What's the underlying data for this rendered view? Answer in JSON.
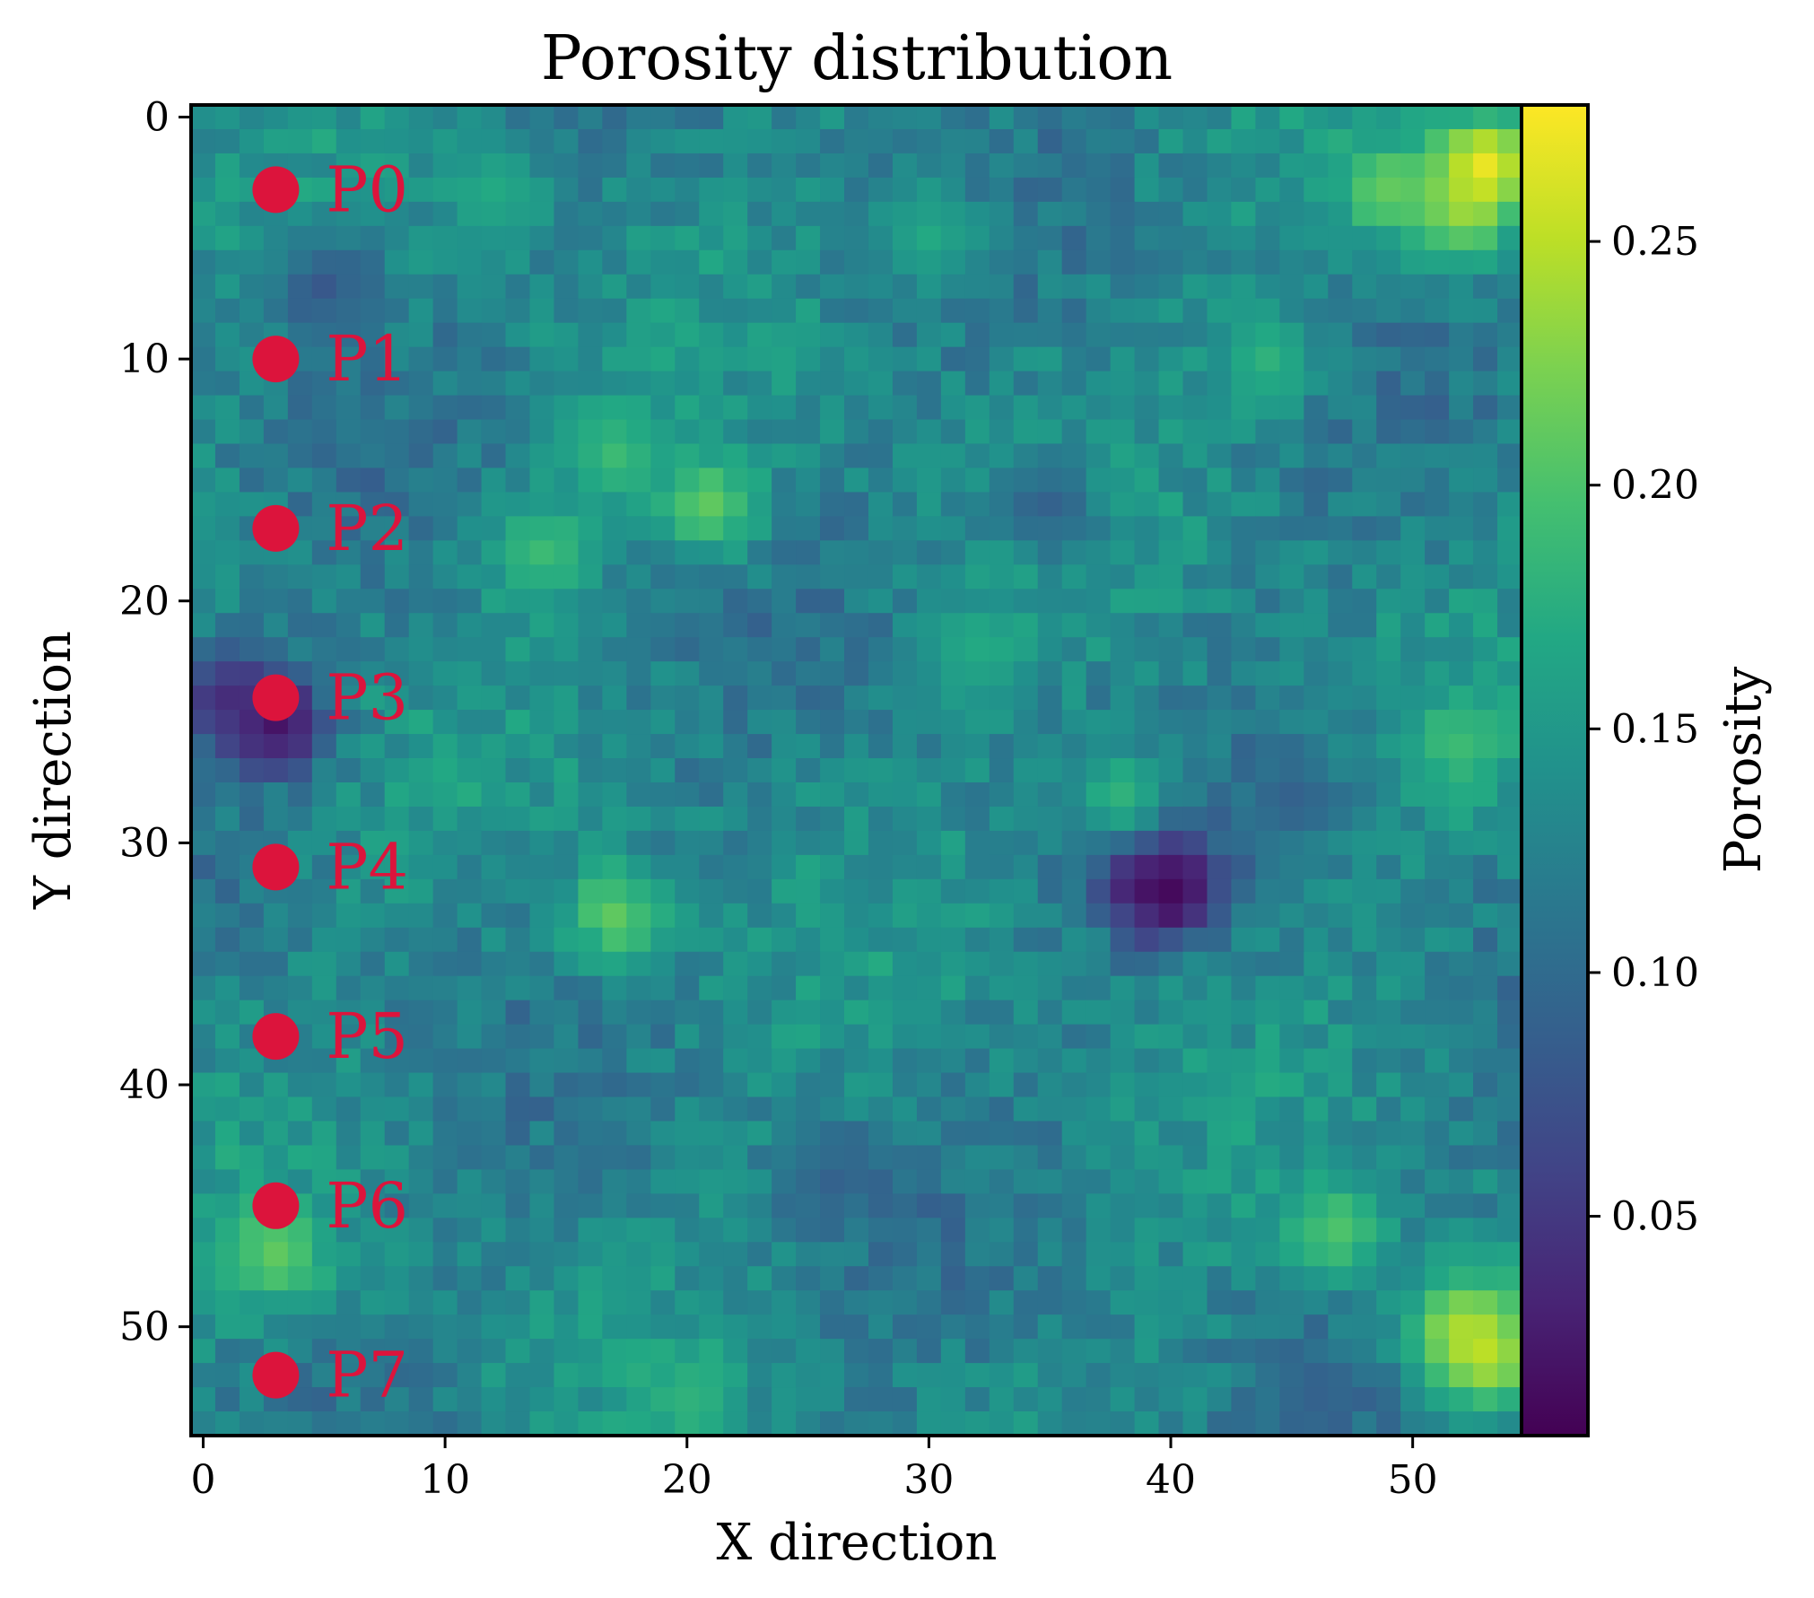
{
  "chart_data": {
    "type": "heatmap",
    "title": "Porosity distribution",
    "xlabel": "X direction",
    "ylabel": "Y direction",
    "colorbar_label": "Porosity",
    "colormap": "viridis",
    "grid_size": [
      55,
      55
    ],
    "xlim": [
      -0.5,
      54.5
    ],
    "ylim": [
      54.5,
      -0.5
    ],
    "x_ticks": [
      0,
      10,
      20,
      30,
      40,
      50
    ],
    "x_tick_labels": [
      "0",
      "10",
      "20",
      "30",
      "40",
      "50"
    ],
    "y_ticks": [
      0,
      10,
      20,
      30,
      40,
      50
    ],
    "y_tick_labels": [
      "0",
      "10",
      "20",
      "30",
      "40",
      "50"
    ],
    "color_range": [
      0.005,
      0.278
    ],
    "colorbar_ticks": [
      0.05,
      0.1,
      0.15,
      0.2,
      0.25
    ],
    "colorbar_tick_labels": [
      "0.05",
      "0.10",
      "0.15",
      "0.20",
      "0.25"
    ],
    "base_porosity": 0.13,
    "porosity_features": [
      {
        "x": 52,
        "y": 4,
        "value": 0.22
      },
      {
        "x": 49,
        "y": 3,
        "value": 0.21
      },
      {
        "x": 53,
        "y": 2,
        "value": 0.27
      },
      {
        "x": 21,
        "y": 16,
        "value": 0.21
      },
      {
        "x": 17,
        "y": 14,
        "value": 0.19
      },
      {
        "x": 14,
        "y": 18,
        "value": 0.19
      },
      {
        "x": 3,
        "y": 25,
        "value": 0.01
      },
      {
        "x": 1,
        "y": 24,
        "value": 0.04
      },
      {
        "x": 39,
        "y": 31,
        "value": 0.02
      },
      {
        "x": 40,
        "y": 32,
        "value": 0.01
      },
      {
        "x": 17,
        "y": 33,
        "value": 0.21
      },
      {
        "x": 38,
        "y": 28,
        "value": 0.18
      },
      {
        "x": 47,
        "y": 46,
        "value": 0.2
      },
      {
        "x": 52,
        "y": 50,
        "value": 0.23
      },
      {
        "x": 53,
        "y": 51,
        "value": 0.25
      },
      {
        "x": 3,
        "y": 47,
        "value": 0.21
      },
      {
        "x": 32,
        "y": 22,
        "value": 0.17
      },
      {
        "x": 45,
        "y": 28,
        "value": 0.09
      },
      {
        "x": 46,
        "y": 53,
        "value": 0.09
      },
      {
        "x": 26,
        "y": 44,
        "value": 0.09
      },
      {
        "x": 35,
        "y": 16,
        "value": 0.09
      },
      {
        "x": 5,
        "y": 7,
        "value": 0.08
      },
      {
        "x": 52,
        "y": 26,
        "value": 0.19
      },
      {
        "x": 12,
        "y": 3,
        "value": 0.17
      },
      {
        "x": 30,
        "y": 5,
        "value": 0.17
      },
      {
        "x": 20,
        "y": 53,
        "value": 0.18
      },
      {
        "x": 44,
        "y": 10,
        "value": 0.18
      }
    ],
    "wells": [
      {
        "label": "P0",
        "x": 3,
        "y": 3
      },
      {
        "label": "P1",
        "x": 3,
        "y": 10
      },
      {
        "label": "P2",
        "x": 3,
        "y": 17
      },
      {
        "label": "P3",
        "x": 3,
        "y": 24
      },
      {
        "label": "P4",
        "x": 3,
        "y": 31
      },
      {
        "label": "P5",
        "x": 3,
        "y": 38
      },
      {
        "label": "P6",
        "x": 3,
        "y": 45
      },
      {
        "label": "P7",
        "x": 3,
        "y": 52
      }
    ],
    "well_color": "#dc143c"
  }
}
